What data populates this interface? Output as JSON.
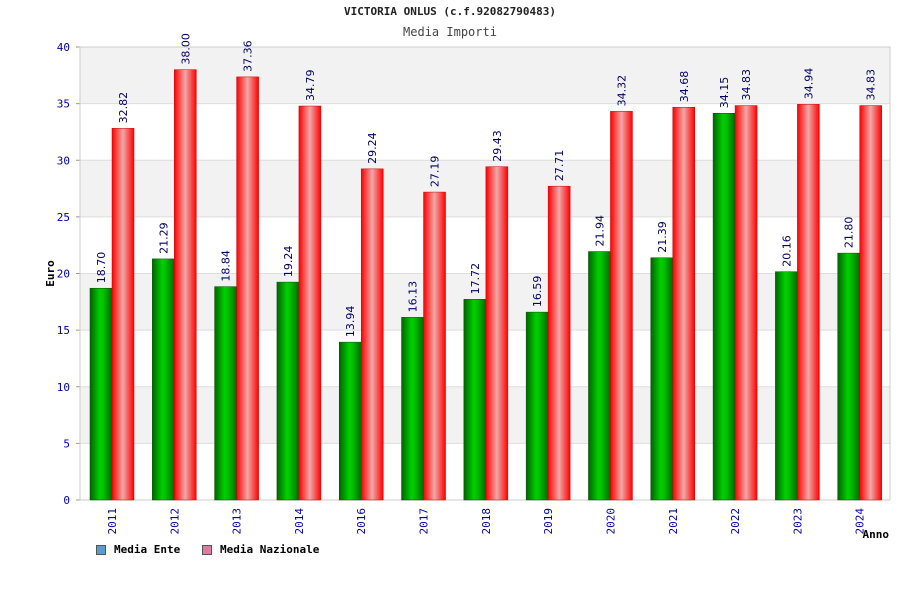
{
  "header": {
    "title": "VICTORIA ONLUS (c.f.92082790483)",
    "subtitle": "Media Importi"
  },
  "legend": {
    "items": [
      {
        "label": "Media Ente",
        "color": "#5b9bd5"
      },
      {
        "label": "Media Nazionale",
        "color": "#e07aa0"
      }
    ]
  },
  "colors": {
    "ente_bar": "#00b000",
    "ente_bar_dark": "#007000",
    "nazionale_bar": "#ff0000",
    "nazionale_bar_light": "#f0a0a0",
    "axis_label": "#0000aa",
    "grid_band": "#f2f2f2"
  },
  "chart_data": {
    "type": "bar",
    "title": "VICTORIA ONLUS (c.f.92082790483)",
    "subtitle": "Media Importi",
    "xlabel": "Anno",
    "ylabel": "Euro",
    "ylim": [
      0,
      40
    ],
    "yticks": [
      0,
      5,
      10,
      15,
      20,
      25,
      30,
      35,
      40
    ],
    "categories": [
      "2011",
      "2012",
      "2013",
      "2014",
      "2016",
      "2017",
      "2018",
      "2019",
      "2020",
      "2021",
      "2022",
      "2023",
      "2024"
    ],
    "series": [
      {
        "name": "Media Ente",
        "values": [
          18.7,
          21.29,
          18.84,
          19.24,
          13.94,
          16.13,
          17.72,
          16.59,
          21.94,
          21.39,
          34.15,
          20.16,
          21.8
        ],
        "labels": [
          "18.70",
          "21.29",
          "18.84",
          "19.24",
          "13.94",
          "16.13",
          "17.72",
          "16.59",
          "21.94",
          "21.39",
          "34.15",
          "20.16",
          "21.80"
        ]
      },
      {
        "name": "Media Nazionale",
        "values": [
          32.82,
          38.0,
          37.36,
          34.79,
          29.24,
          27.19,
          29.43,
          27.71,
          34.32,
          34.68,
          34.83,
          34.94,
          34.83
        ],
        "labels": [
          "32.82",
          "38.00",
          "37.36",
          "34.79",
          "29.24",
          "27.19",
          "29.43",
          "27.71",
          "34.32",
          "34.68",
          "34.83",
          "34.94",
          "34.83"
        ]
      }
    ],
    "legend_position": "bottom-left"
  }
}
